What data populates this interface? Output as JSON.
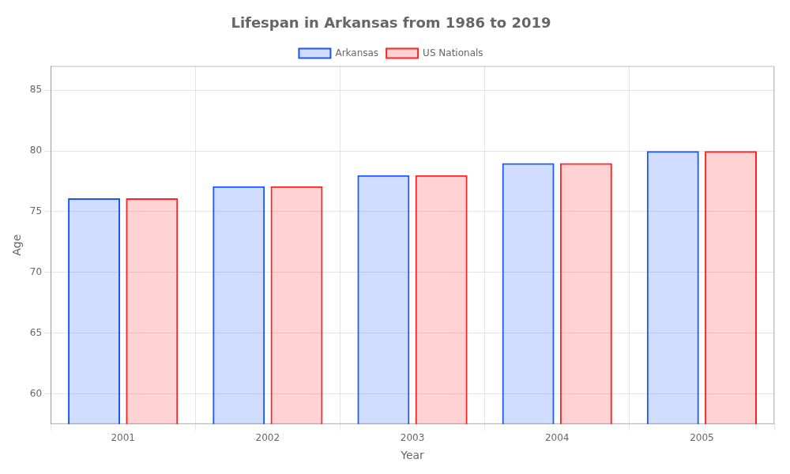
{
  "chart_data": {
    "type": "bar",
    "title": "Lifespan in Arkansas from 1986 to 2019",
    "x_label": "Year",
    "y_label": "Age",
    "categories": [
      "2001",
      "2002",
      "2003",
      "2004",
      "2005"
    ],
    "series": [
      {
        "name": "Arkansas",
        "color": "#1a56ff",
        "values": [
          76.1,
          77.1,
          78.0,
          79.0,
          80.0
        ]
      },
      {
        "name": "US Nationals",
        "color": "#ff2222",
        "values": [
          76.1,
          77.1,
          78.0,
          79.0,
          80.0
        ]
      }
    ],
    "ylim": [
      57.5,
      87
    ],
    "yticks": [
      60,
      65,
      70,
      75,
      80,
      85
    ],
    "grid": true,
    "legend": "top"
  }
}
